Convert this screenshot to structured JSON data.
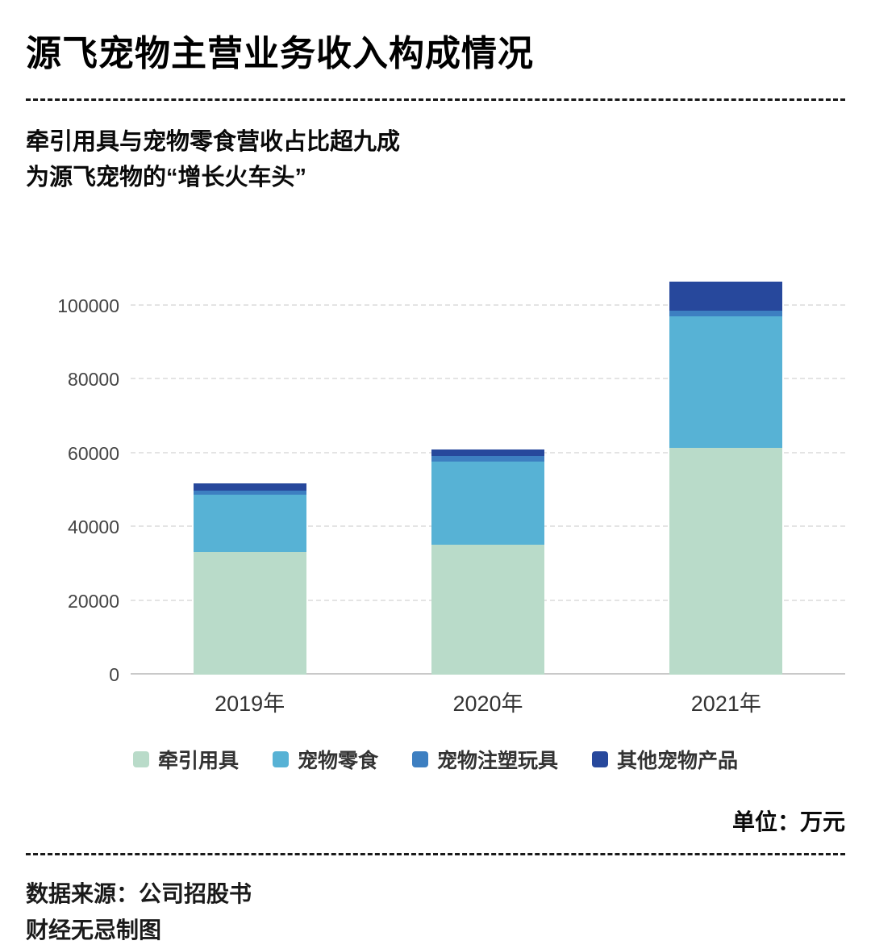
{
  "chart_data": {
    "type": "bar",
    "stacked": true,
    "title": "源飞宠物主营业务收入构成情况",
    "subtitle_lines": [
      "牵引用具与宠物零食营收占比超九成",
      "为源飞宠物的“增长火车头”"
    ],
    "categories": [
      "2019年",
      "2020年",
      "2021年"
    ],
    "series": [
      {
        "name": "牵引用具",
        "color": "#b9dbc9",
        "values": [
          33300,
          35200,
          61500
        ]
      },
      {
        "name": "宠物零食",
        "color": "#57b2d5",
        "values": [
          15600,
          22500,
          35600
        ]
      },
      {
        "name": "宠物注塑玩具",
        "color": "#3d7fc1",
        "values": [
          1100,
          1500,
          1500
        ]
      },
      {
        "name": "其他宠物产品",
        "color": "#27489c",
        "values": [
          1800,
          1800,
          8000
        ]
      }
    ],
    "totals": [
      51800,
      61000,
      106600
    ],
    "ylim": [
      0,
      100000
    ],
    "yticks": [
      0,
      20000,
      40000,
      60000,
      80000,
      100000
    ],
    "grid": true,
    "legend_position": "bottom",
    "unit_label": "单位：万元"
  },
  "footer": {
    "source": "数据来源：公司招股书",
    "credit": "财经无忌制图"
  }
}
